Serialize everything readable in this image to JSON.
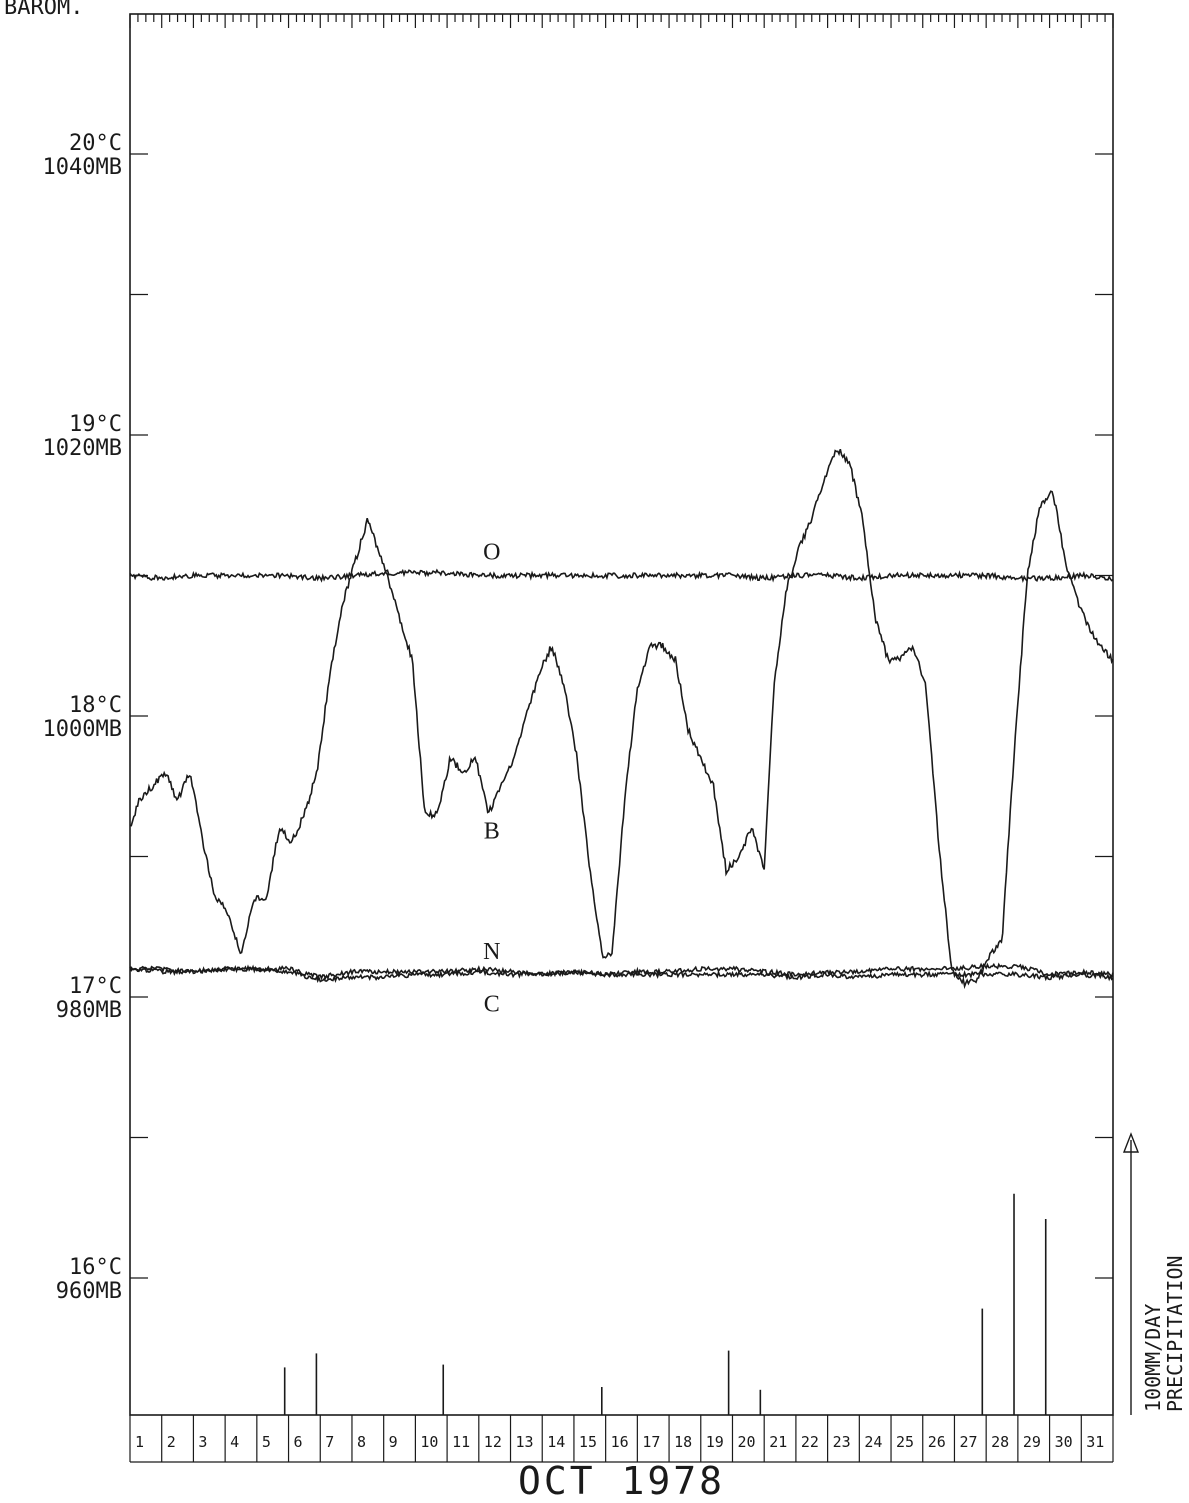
{
  "chart_data": {
    "type": "line",
    "corner_label": "BAROM.",
    "xlabel": "OCT 1978",
    "x_ticks": [
      "1",
      "2",
      "3",
      "4",
      "5",
      "6",
      "7",
      "8",
      "9",
      "10",
      "11",
      "12",
      "13",
      "14",
      "15",
      "16",
      "17",
      "18",
      "19",
      "20",
      "21",
      "22",
      "23",
      "24",
      "25",
      "26",
      "27",
      "28",
      "29",
      "30",
      "31"
    ],
    "x_range": [
      1,
      32
    ],
    "y_temp_range_c": [
      15.5,
      20.5
    ],
    "y_pressure_range_mb": [
      950,
      1050
    ],
    "y_ticks": [
      {
        "temp": "20°C",
        "pressure": "1040MB",
        "value_c": 20
      },
      {
        "temp": "19°C",
        "pressure": "1020MB",
        "value_c": 19
      },
      {
        "temp": "18°C",
        "pressure": "1000MB",
        "value_c": 18
      },
      {
        "temp": "17°C",
        "pressure": "980MB",
        "value_c": 17
      },
      {
        "temp": "16°C",
        "pressure": "960MB",
        "value_c": 16
      }
    ],
    "precip_axis_label": [
      "100MM/DAY",
      "PRECIPITATION"
    ],
    "precip_scale_mm": 100,
    "series": [
      {
        "name": "O",
        "unit": "°C",
        "x": [
          1,
          2,
          3,
          4,
          5,
          6,
          7,
          8,
          9,
          10,
          11,
          12,
          13,
          14,
          15,
          16,
          17,
          18,
          19,
          20,
          21,
          22,
          23,
          24,
          25,
          26,
          27,
          28,
          29,
          30,
          31,
          32
        ],
        "values": [
          18.5,
          18.49,
          18.5,
          18.5,
          18.5,
          18.5,
          18.49,
          18.5,
          18.51,
          18.51,
          18.51,
          18.5,
          18.5,
          18.5,
          18.5,
          18.5,
          18.5,
          18.5,
          18.5,
          18.5,
          18.49,
          18.5,
          18.5,
          18.49,
          18.5,
          18.5,
          18.5,
          18.5,
          18.49,
          18.49,
          18.5,
          18.49
        ]
      },
      {
        "name": "B",
        "unit": "MB",
        "x": [
          1,
          1.3,
          1.7,
          2.1,
          2.5,
          2.9,
          3.3,
          3.7,
          4.1,
          4.5,
          4.9,
          5.3,
          5.7,
          6.1,
          6.5,
          6.9,
          7.3,
          7.7,
          8.1,
          8.5,
          8.8,
          9.1,
          9.5,
          9.9,
          10.3,
          10.7,
          11.1,
          11.5,
          11.9,
          12.3,
          12.7,
          13.1,
          13.5,
          13.9,
          14.3,
          14.7,
          15.1,
          15.5,
          15.9,
          16.2,
          16.6,
          17,
          17.4,
          17.8,
          18.2,
          18.6,
          19,
          19.4,
          19.8,
          20.2,
          20.6,
          21,
          21.3,
          21.7,
          22.1,
          22.5,
          22.9,
          23.3,
          23.7,
          24.1,
          24.5,
          24.9,
          25.3,
          25.7,
          26.1,
          26.5,
          26.9,
          27.3,
          27.7,
          28.1,
          28.5,
          28.9,
          29.3,
          29.7,
          30.1,
          30.5,
          30.9,
          31.3,
          31.6,
          32
        ],
        "values": [
          992,
          994,
          995,
          996,
          994,
          996,
          991,
          987,
          986,
          983,
          987,
          987,
          992,
          991,
          993,
          996,
          1003,
          1008,
          1011,
          1014,
          1012,
          1010,
          1007,
          1004,
          993,
          993,
          997,
          996,
          997,
          993,
          995,
          997,
          1000,
          1003,
          1005,
          1002,
          997,
          989,
          983,
          983,
          994,
          1002,
          1005,
          1005,
          1004,
          999,
          997,
          995,
          989,
          990,
          992,
          989,
          1002,
          1009,
          1012,
          1014,
          1017,
          1019,
          1018,
          1014,
          1007,
          1004,
          1004,
          1005,
          1002,
          991,
          982,
          981,
          981,
          983,
          984,
          998,
          1010,
          1015,
          1016,
          1011,
          1008,
          1006,
          1005,
          1004
        ]
      },
      {
        "name": "N",
        "unit": "°C",
        "x": [
          1,
          2,
          3,
          4,
          5,
          6,
          7,
          8,
          9,
          10,
          11,
          12,
          13,
          14,
          15,
          16,
          17,
          18,
          19,
          20,
          21,
          22,
          23,
          24,
          25,
          26,
          27,
          28,
          29,
          30,
          31,
          32
        ],
        "values": [
          17.1,
          17.1,
          17.09,
          17.1,
          17.1,
          17.1,
          17.07,
          17.09,
          17.09,
          17.09,
          17.09,
          17.1,
          17.09,
          17.08,
          17.09,
          17.08,
          17.09,
          17.09,
          17.1,
          17.1,
          17.09,
          17.08,
          17.09,
          17.09,
          17.1,
          17.1,
          17.1,
          17.11,
          17.11,
          17.08,
          17.09,
          17.08
        ]
      },
      {
        "name": "C",
        "unit": "°C",
        "x": [
          1,
          2,
          3,
          4,
          5,
          6,
          7,
          8,
          9,
          10,
          11,
          12,
          13,
          14,
          15,
          16,
          17,
          18,
          19,
          20,
          21,
          22,
          23,
          24,
          25,
          26,
          27,
          28,
          29,
          30,
          31,
          32
        ],
        "values": [
          17.1,
          17.09,
          17.09,
          17.1,
          17.1,
          17.09,
          17.06,
          17.07,
          17.07,
          17.08,
          17.08,
          17.09,
          17.08,
          17.08,
          17.09,
          17.08,
          17.08,
          17.08,
          17.08,
          17.08,
          17.08,
          17.07,
          17.08,
          17.07,
          17.08,
          17.08,
          17.08,
          17.08,
          17.08,
          17.07,
          17.08,
          17.07
        ]
      }
    ],
    "precipitation_mm": [
      {
        "day": 5.5,
        "mm": 17
      },
      {
        "day": 6.5,
        "mm": 22
      },
      {
        "day": 10.5,
        "mm": 18
      },
      {
        "day": 15.5,
        "mm": 10
      },
      {
        "day": 19.5,
        "mm": 23
      },
      {
        "day": 20.5,
        "mm": 9
      },
      {
        "day": 27.5,
        "mm": 38
      },
      {
        "day": 28.5,
        "mm": 79
      },
      {
        "day": 29.5,
        "mm": 70
      }
    ]
  }
}
